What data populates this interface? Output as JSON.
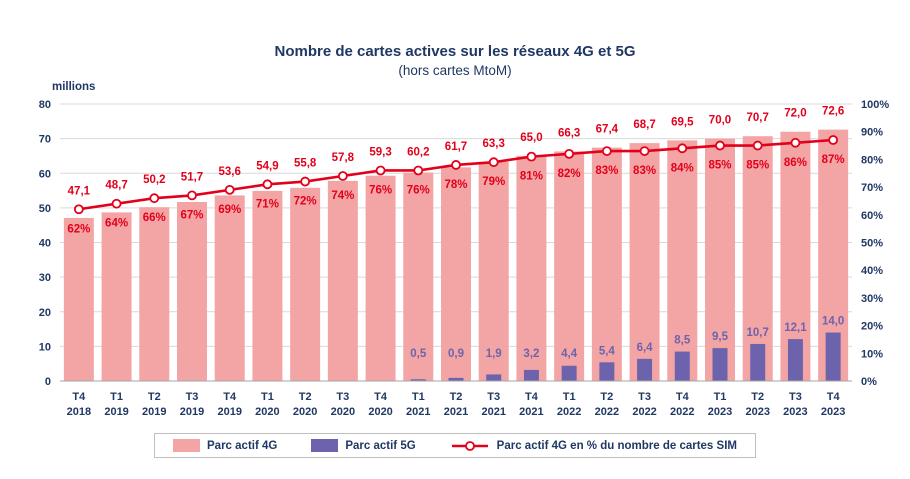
{
  "chart_data": {
    "type": "bar+line",
    "title": "Nombre de cartes actives sur les réseaux 4G et 5G",
    "subtitle": "(hors cartes MtoM)",
    "ylabel_left": "millions",
    "grid": true,
    "legend_position": "bottom",
    "y_left": {
      "range": [
        0,
        80
      ],
      "step": 10,
      "ticks": [
        "0",
        "10",
        "20",
        "30",
        "40",
        "50",
        "60",
        "70",
        "80"
      ]
    },
    "y_right": {
      "range": [
        0,
        100
      ],
      "step": 10,
      "ticks": [
        "0%",
        "10%",
        "20%",
        "30%",
        "40%",
        "50%",
        "60%",
        "70%",
        "80%",
        "90%",
        "100%"
      ]
    },
    "categories": [
      {
        "q": "T4",
        "year": "2018"
      },
      {
        "q": "T1",
        "year": "2019"
      },
      {
        "q": "T2",
        "year": "2019"
      },
      {
        "q": "T3",
        "year": "2019"
      },
      {
        "q": "T4",
        "year": "2019"
      },
      {
        "q": "T1",
        "year": "2020"
      },
      {
        "q": "T2",
        "year": "2020"
      },
      {
        "q": "T3",
        "year": "2020"
      },
      {
        "q": "T4",
        "year": "2020"
      },
      {
        "q": "T1",
        "year": "2021"
      },
      {
        "q": "T2",
        "year": "2021"
      },
      {
        "q": "T3",
        "year": "2021"
      },
      {
        "q": "T4",
        "year": "2021"
      },
      {
        "q": "T1",
        "year": "2022"
      },
      {
        "q": "T2",
        "year": "2022"
      },
      {
        "q": "T3",
        "year": "2022"
      },
      {
        "q": "T4",
        "year": "2022"
      },
      {
        "q": "T1",
        "year": "2023"
      },
      {
        "q": "T2",
        "year": "2023"
      },
      {
        "q": "T3",
        "year": "2023"
      },
      {
        "q": "T4",
        "year": "2023"
      }
    ],
    "series": [
      {
        "name": "Parc actif 4G",
        "type": "bar",
        "axis": "left",
        "values": [
          47.1,
          48.7,
          50.2,
          51.7,
          53.6,
          54.9,
          55.8,
          57.8,
          59.3,
          60.2,
          61.7,
          63.3,
          65.0,
          66.3,
          67.4,
          68.7,
          69.5,
          70.0,
          70.7,
          72.0,
          72.6
        ],
        "labels": [
          "47,1",
          "48,7",
          "50,2",
          "51,7",
          "53,6",
          "54,9",
          "55,8",
          "57,8",
          "59,3",
          "60,2",
          "61,7",
          "63,3",
          "65,0",
          "66,3",
          "67,4",
          "68,7",
          "69,5",
          "70,0",
          "70,7",
          "72,0",
          "72,6"
        ]
      },
      {
        "name": "Parc actif 5G",
        "type": "bar",
        "axis": "left",
        "values": [
          null,
          null,
          null,
          null,
          null,
          null,
          null,
          null,
          null,
          0.5,
          0.9,
          1.9,
          3.2,
          4.4,
          5.4,
          6.4,
          8.5,
          9.5,
          10.7,
          12.1,
          14.0
        ],
        "labels": [
          "",
          "",
          "",
          "",
          "",
          "",
          "",
          "",
          "",
          "0,5",
          "0,9",
          "1,9",
          "3,2",
          "4,4",
          "5,4",
          "6,4",
          "8,5",
          "9,5",
          "10,7",
          "12,1",
          "14,0"
        ]
      },
      {
        "name": "Parc actif 4G en % du nombre de cartes SIM",
        "type": "line",
        "axis": "right",
        "values": [
          62,
          64,
          66,
          67,
          69,
          71,
          72,
          74,
          76,
          76,
          78,
          79,
          81,
          82,
          83,
          83,
          84,
          85,
          85,
          86,
          87
        ],
        "labels": [
          "62%",
          "64%",
          "66%",
          "67%",
          "69%",
          "71%",
          "72%",
          "74%",
          "76%",
          "76%",
          "78%",
          "79%",
          "81%",
          "82%",
          "83%",
          "83%",
          "84%",
          "85%",
          "85%",
          "86%",
          "87%"
        ]
      }
    ]
  },
  "legend": {
    "items": [
      {
        "label": "Parc actif 4G"
      },
      {
        "label": "Parc actif 5G"
      },
      {
        "label": "Parc actif 4G en % du nombre de cartes SIM"
      }
    ]
  },
  "colors": {
    "navy": "#1F3864",
    "pink": "#F3A5A5",
    "purple": "#6C63AC",
    "red": "#E2001B",
    "grid": "#D9D9D9",
    "axis_line": "#A6A6A6",
    "marker_fill": "#FFFFFF"
  }
}
